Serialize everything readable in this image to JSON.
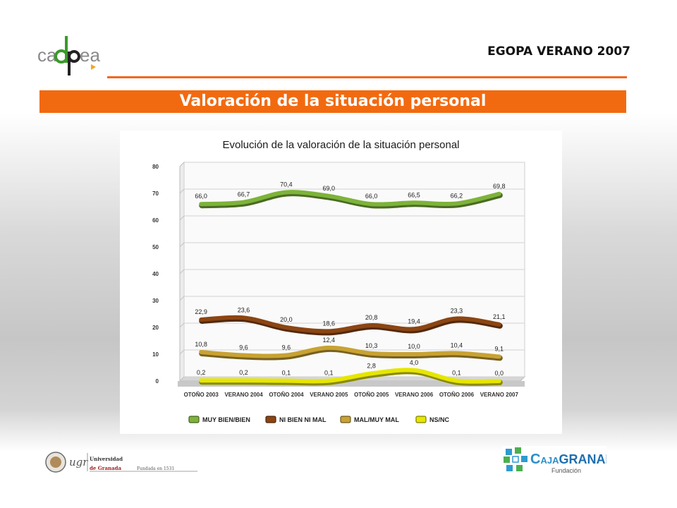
{
  "header": {
    "logo_text": "cadpea",
    "survey_title": "EGOPA VERANO 2007",
    "banner_title": "Valoración de la situación personal"
  },
  "colors": {
    "accent_orange": "#f26a10",
    "series_green": "#7db33a",
    "series_brown": "#8b4513",
    "series_gold": "#c8a233",
    "series_yellow": "#e6e600"
  },
  "chart_data": {
    "type": "line",
    "title": "Evolución de la valoración de la situación personal",
    "categories": [
      "OTOÑO 2003",
      "VERANO 2004",
      "OTOÑO 2004",
      "VERANO 2005",
      "OTOÑO 2005",
      "VERANO 2006",
      "OTOÑO 2006",
      "VERANO 2007"
    ],
    "ylim": [
      0,
      80
    ],
    "yticks": [
      "0",
      "10",
      "20",
      "30",
      "40",
      "50",
      "60",
      "70",
      "80"
    ],
    "grid": true,
    "legend_position": "bottom",
    "series": [
      {
        "name": "MUY BIEN/BIEN",
        "color": "#7db33a",
        "values": [
          66.0,
          66.7,
          70.4,
          69.0,
          66.0,
          66.5,
          66.2,
          69.8
        ],
        "labels": [
          "66,0",
          "66,7",
          "70,4",
          "69,0",
          "66,0",
          "66,5",
          "66,2",
          "69,8"
        ]
      },
      {
        "name": "NI BIEN NI MAL",
        "color": "#8b4513",
        "values": [
          22.9,
          23.6,
          20.0,
          18.6,
          20.8,
          19.4,
          23.3,
          21.1
        ],
        "labels": [
          "22,9",
          "23,6",
          "20,0",
          "18,6",
          "20,8",
          "19,4",
          "23,3",
          "21,1"
        ]
      },
      {
        "name": "MAL/MUY MAL",
        "color": "#c8a233",
        "values": [
          10.8,
          9.6,
          9.6,
          12.4,
          10.3,
          10.0,
          10.4,
          9.1
        ],
        "labels": [
          "10,8",
          "9,6",
          "9,6",
          "12,4",
          "10,3",
          "10,0",
          "10,4",
          "9,1"
        ]
      },
      {
        "name": "NS/NC",
        "color": "#e6e600",
        "values": [
          0.2,
          0.2,
          0.1,
          0.1,
          2.8,
          4.0,
          0.1,
          0.0
        ],
        "labels": [
          "0,2",
          "0,2",
          "0,1",
          "0,1",
          "2,8",
          "4,0",
          "0,1",
          "0,0"
        ]
      }
    ]
  },
  "footer": {
    "ugr_line1": "Universidad",
    "ugr_line2": "de Granada",
    "ugr_founded": "Fundada en 1531",
    "caja_name_prefix": "C",
    "caja_name_small": "AJA",
    "caja_name_main": "GRANADA",
    "caja_sub": "Fundación"
  }
}
